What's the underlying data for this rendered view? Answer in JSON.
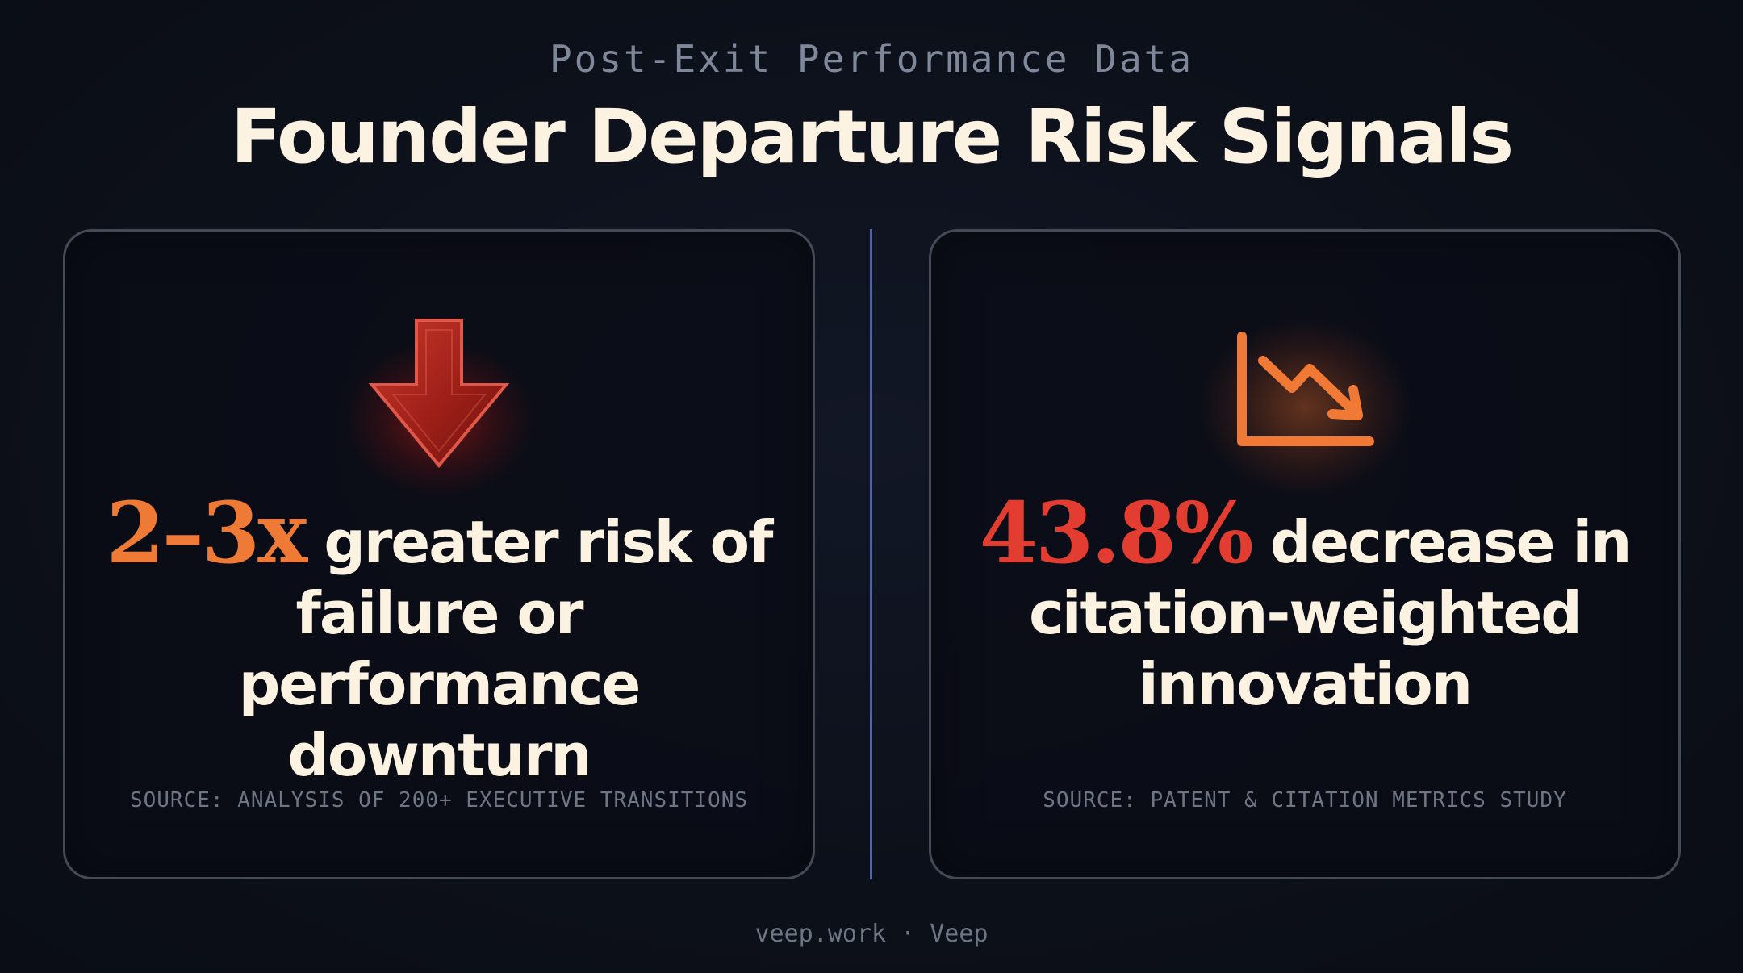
{
  "header": {
    "eyebrow": "Post-Exit Performance Data",
    "title": "Founder Departure Risk Signals"
  },
  "cards": [
    {
      "icon": "down-arrow-icon",
      "stat_value": "2–3x",
      "stat_text": "greater risk of failure or performance downturn",
      "source": "SOURCE: ANALYSIS OF 200+ EXECUTIVE TRANSITIONS",
      "accent_color": "#ef7a36"
    },
    {
      "icon": "declining-chart-icon",
      "stat_value": "43.8%",
      "stat_text": "decrease in citation-weighted innovation",
      "source": "SOURCE: PATENT & CITATION METRICS STUDY",
      "accent_color": "#e23d30"
    }
  ],
  "footer": {
    "text": "veep.work · Veep"
  }
}
